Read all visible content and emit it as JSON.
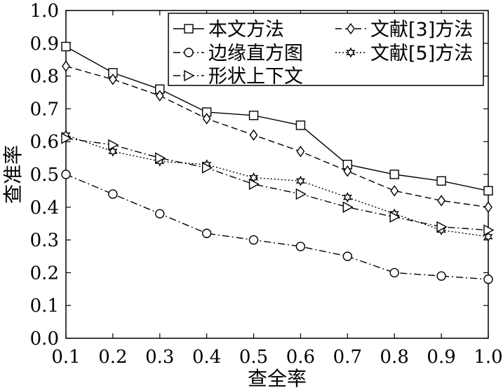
{
  "chart_data": {
    "type": "line",
    "xlabel": "查全率",
    "ylabel": "查准率",
    "xlim": [
      0.1,
      1.0
    ],
    "ylim": [
      0.0,
      1.0
    ],
    "x_ticks": [
      "0.1",
      "0.2",
      "0.3",
      "0.4",
      "0.5",
      "0.6",
      "0.7",
      "0.8",
      "0.9",
      "1.0"
    ],
    "y_ticks": [
      "0.0",
      "0.1",
      "0.2",
      "0.3",
      "0.4",
      "0.5",
      "0.6",
      "0.7",
      "0.8",
      "0.9",
      "1.0"
    ],
    "x": [
      0.1,
      0.2,
      0.3,
      0.4,
      0.5,
      0.6,
      0.7,
      0.8,
      0.9,
      1.0
    ],
    "grid": false,
    "legend_position": "top-right",
    "series": [
      {
        "name": "本文方法",
        "marker": "square",
        "dash": "solid",
        "values": [
          0.89,
          0.81,
          0.76,
          0.69,
          0.68,
          0.65,
          0.53,
          0.5,
          0.48,
          0.45
        ]
      },
      {
        "name": "文献[3]方法",
        "marker": "diamond",
        "dash": "dashed",
        "values": [
          0.83,
          0.79,
          0.74,
          0.67,
          0.62,
          0.57,
          0.51,
          0.45,
          0.42,
          0.4
        ]
      },
      {
        "name": "边缘直方图",
        "marker": "circle",
        "dash": "dashdot",
        "values": [
          0.5,
          0.44,
          0.38,
          0.32,
          0.3,
          0.28,
          0.25,
          0.2,
          0.19,
          0.18
        ]
      },
      {
        "name": "文献[5]方法",
        "marker": "star",
        "dash": "dotted",
        "values": [
          0.62,
          0.57,
          0.54,
          0.53,
          0.49,
          0.48,
          0.43,
          0.38,
          0.33,
          0.31
        ]
      },
      {
        "name": "形状上下文",
        "marker": "triangle-right",
        "dash": "dashdot",
        "values": [
          0.61,
          0.59,
          0.55,
          0.52,
          0.47,
          0.44,
          0.4,
          0.37,
          0.34,
          0.33
        ]
      }
    ]
  }
}
